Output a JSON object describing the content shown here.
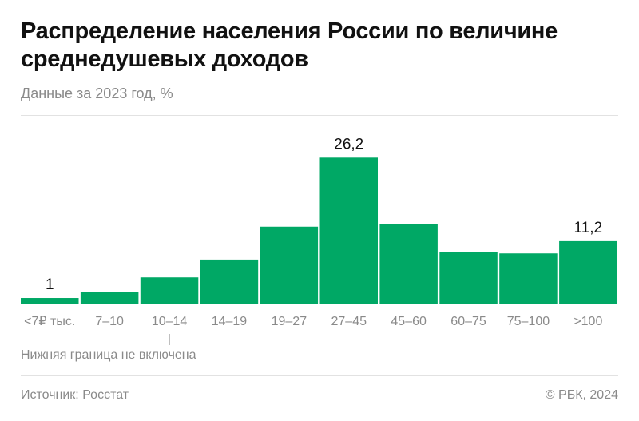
{
  "header": {
    "title": "Распределение населения России по величине среднедушевых доходов",
    "subtitle": "Данные за 2023 год, %"
  },
  "chart_data": {
    "type": "bar",
    "categories": [
      "<7₽ тыс.",
      "7–10",
      "10–14",
      "14–19",
      "19–27",
      "27–45",
      "45–60",
      "60–75",
      "75–100",
      ">100"
    ],
    "values": [
      1,
      2.1,
      4.7,
      7.9,
      13.8,
      26.2,
      14.3,
      9.3,
      9.0,
      11.2
    ],
    "data_labels": {
      "0": "1",
      "5": "26,2",
      "9": "11,2"
    },
    "bar_color": "#00a865",
    "annotation": "Нижняя граница не включена",
    "annotation_category_index": 2,
    "ylim": [
      0,
      26.2
    ],
    "grid": false
  },
  "footer": {
    "source": "Источник: Росстат",
    "copyright": "© РБК, 2024"
  }
}
